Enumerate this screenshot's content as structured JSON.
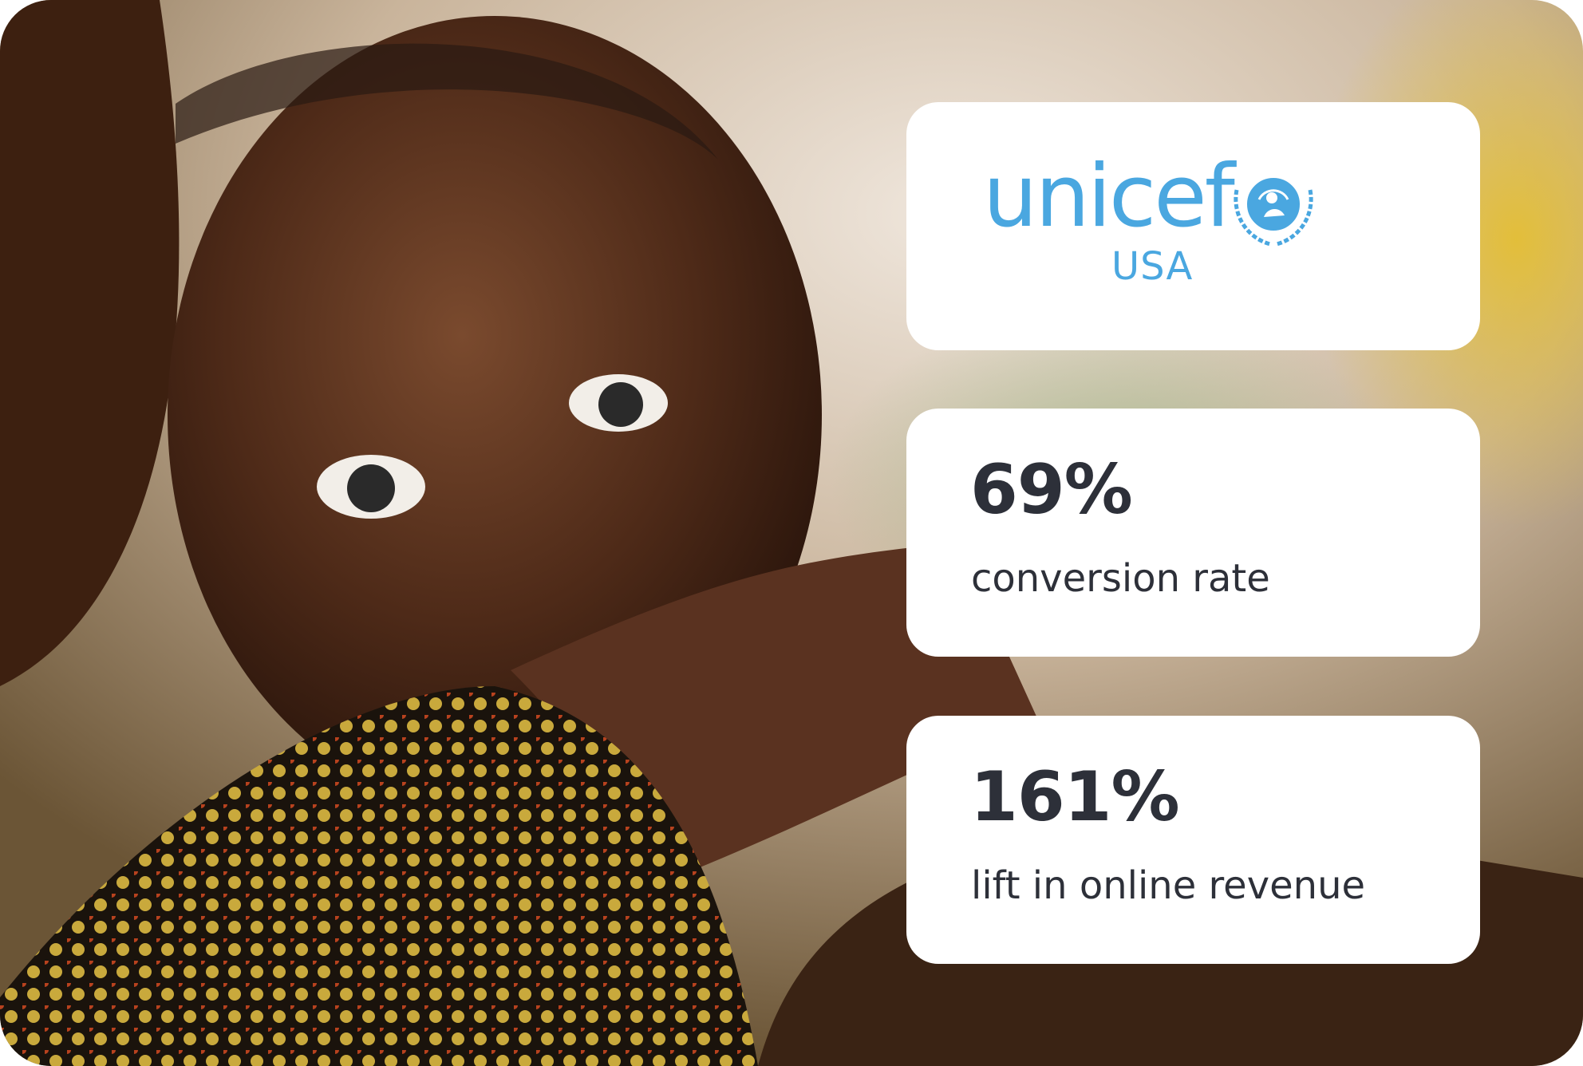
{
  "logo": {
    "name": "unicef",
    "region": "USA"
  },
  "stats": [
    {
      "value": "69%",
      "label": "conversion rate"
    },
    {
      "value": "161%",
      "label": "lift in online revenue"
    }
  ]
}
